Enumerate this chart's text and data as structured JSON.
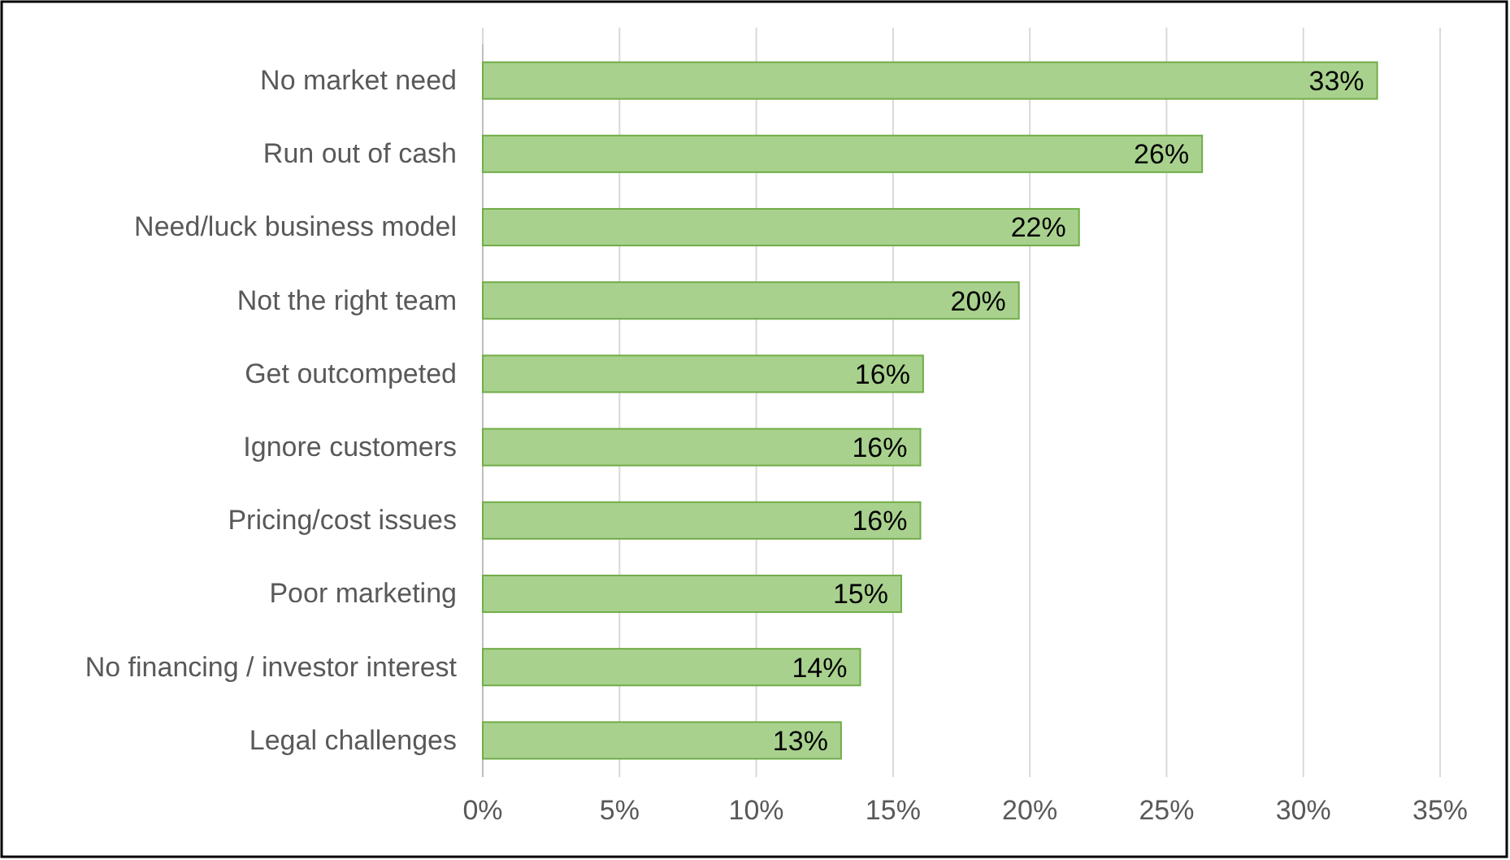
{
  "chart_data": {
    "type": "bar",
    "orientation": "horizontal",
    "categories": [
      "No market need",
      "Run out of cash",
      "Need/luck business model",
      "Not the right team",
      "Get outcompeted",
      "Ignore customers",
      "Pricing/cost issues",
      "Poor marketing",
      "No financing / investor interest",
      "Legal challenges"
    ],
    "values": [
      32.7,
      26.3,
      21.8,
      19.6,
      16.1,
      16.0,
      16.0,
      15.3,
      13.8,
      13.1
    ],
    "value_labels": [
      "33%",
      "26%",
      "22%",
      "20%",
      "16%",
      "16%",
      "16%",
      "15%",
      "14%",
      "13%"
    ],
    "color": "#a9d18e",
    "xlim": [
      0,
      35
    ],
    "xticks": [
      {
        "value": 0,
        "label": "0%"
      },
      {
        "value": 5,
        "label": "5%"
      },
      {
        "value": 10,
        "label": "10%"
      },
      {
        "value": 15,
        "label": "15%"
      },
      {
        "value": 20,
        "label": "20%"
      },
      {
        "value": 25,
        "label": "25%"
      },
      {
        "value": 30,
        "label": "30%"
      },
      {
        "value": 35,
        "label": "35%"
      }
    ],
    "grid": "x"
  }
}
